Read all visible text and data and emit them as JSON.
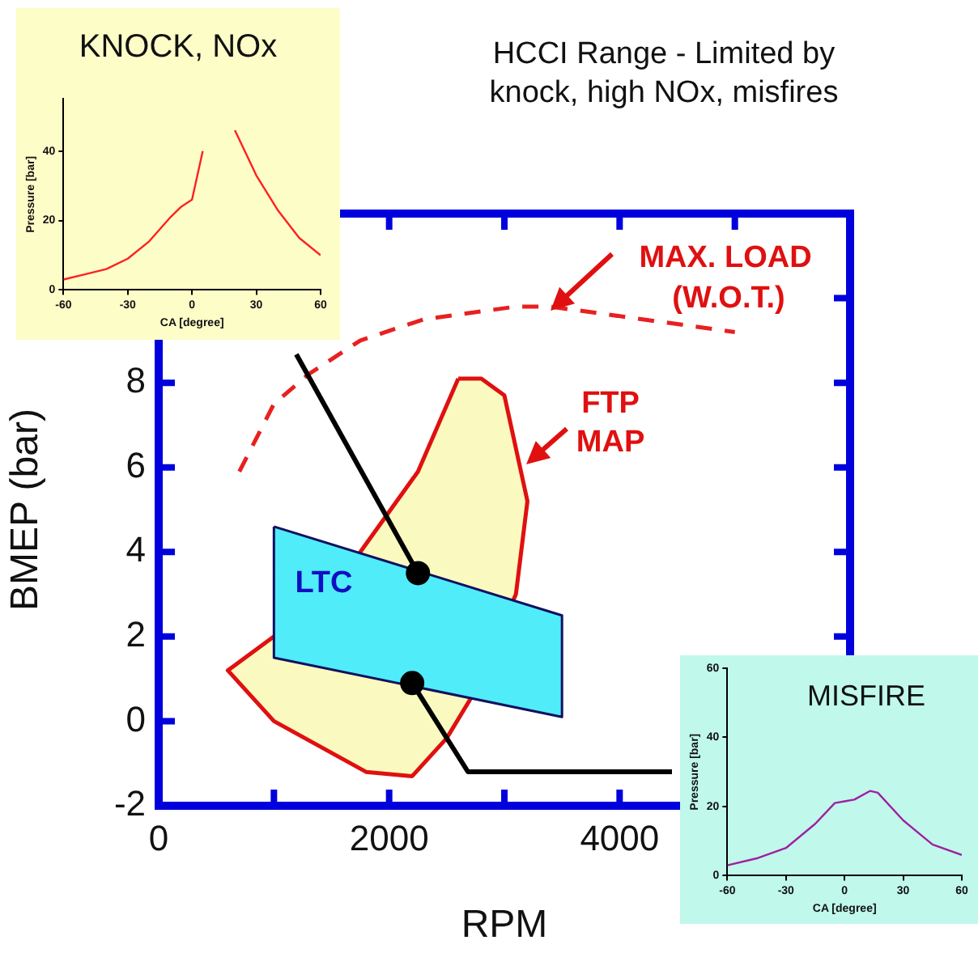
{
  "chart_data": [
    {
      "type": "line",
      "title": "HCCI Range - Limited by knock, high NOx, misfires",
      "xlabel": "RPM",
      "ylabel": "BMEP (bar)",
      "xlim": [
        0,
        6000
      ],
      "xticks": [
        0,
        {
          "value": 1000,
          "label": null
        },
        2000,
        {
          "value": 3000,
          "label": null
        },
        4000,
        {
          "value": 5000,
          "label": null
        }
      ],
      "ylim": [
        -2,
        12
      ],
      "yticks": [
        -2,
        0,
        2,
        4,
        6,
        8,
        {
          "value": 10,
          "label": null
        }
      ],
      "series": [
        {
          "type": "line",
          "color": "#e82020",
          "line_style": "dashed",
          "x": [
            700,
            1000,
            1300,
            1750,
            2300,
            3100,
            3400,
            4200,
            5000
          ],
          "values": [
            5.9,
            7.5,
            8.2,
            9.0,
            9.5,
            9.8,
            9.8,
            9.5,
            9.2
          ]
        },
        {
          "type": "area",
          "color": "#fafac0",
          "x": [
            2600,
            2800,
            3000,
            3200,
            3100,
            2700,
            2500,
            2200,
            1800,
            1000,
            600,
            1000,
            1750,
            2250
          ],
          "values": [
            8.1,
            8.1,
            7.7,
            5.2,
            3.0,
            0.5,
            -0.4,
            -1.3,
            -1.2,
            0.0,
            1.2,
            2.0,
            4.0,
            5.9
          ]
        },
        {
          "type": "area",
          "color": "#50ecfa",
          "x": [
            1000,
            3500,
            3500,
            1000
          ],
          "values": [
            4.6,
            2.5,
            0.1,
            1.5
          ]
        },
        {
          "type": "scatter",
          "color": "#000000",
          "marker": "circle",
          "x": [
            2250,
            2200
          ],
          "values": [
            3.5,
            0.9
          ]
        }
      ],
      "annotations": [
        "MAX. LOAD",
        "(W.O.T.)",
        "FTP",
        "MAP",
        "LTC"
      ]
    },
    {
      "type": "line",
      "title": "KNOCK, NOx",
      "xlabel": "CA [degree]",
      "ylabel": "Pressure [bar]",
      "xlim": [
        -60,
        60
      ],
      "xticks": [
        -60,
        -30,
        0,
        30,
        60
      ],
      "ylim": [
        0,
        55
      ],
      "yticks": [
        0,
        20,
        40
      ],
      "marker": "none",
      "x": [
        -60,
        -50,
        -40,
        -30,
        -20,
        -10,
        -5,
        0,
        5,
        10,
        13,
        20,
        30,
        40,
        50,
        60
      ],
      "series": [
        {
          "color": "#ff2020",
          "values": [
            3,
            4.5,
            6,
            9,
            14,
            21,
            24,
            26,
            40,
            null,
            null,
            46,
            33,
            23,
            15,
            10
          ]
        }
      ]
    },
    {
      "type": "line",
      "title": "MISFIRE",
      "xlabel": "CA [degree]",
      "ylabel": "Pressure [bar]",
      "xlim": [
        -60,
        60
      ],
      "xticks": [
        -60,
        -30,
        0,
        30,
        60
      ],
      "ylim": [
        0,
        60
      ],
      "yticks": [
        0,
        20,
        40,
        60
      ],
      "marker": "none",
      "x": [
        -60,
        -45,
        -30,
        -15,
        -5,
        0,
        5,
        13,
        17,
        30,
        45,
        60
      ],
      "series": [
        {
          "color": "#a020a0",
          "values": [
            3,
            5,
            8,
            15,
            21,
            21.5,
            22,
            24.5,
            24,
            16,
            9,
            6
          ]
        }
      ]
    }
  ]
}
